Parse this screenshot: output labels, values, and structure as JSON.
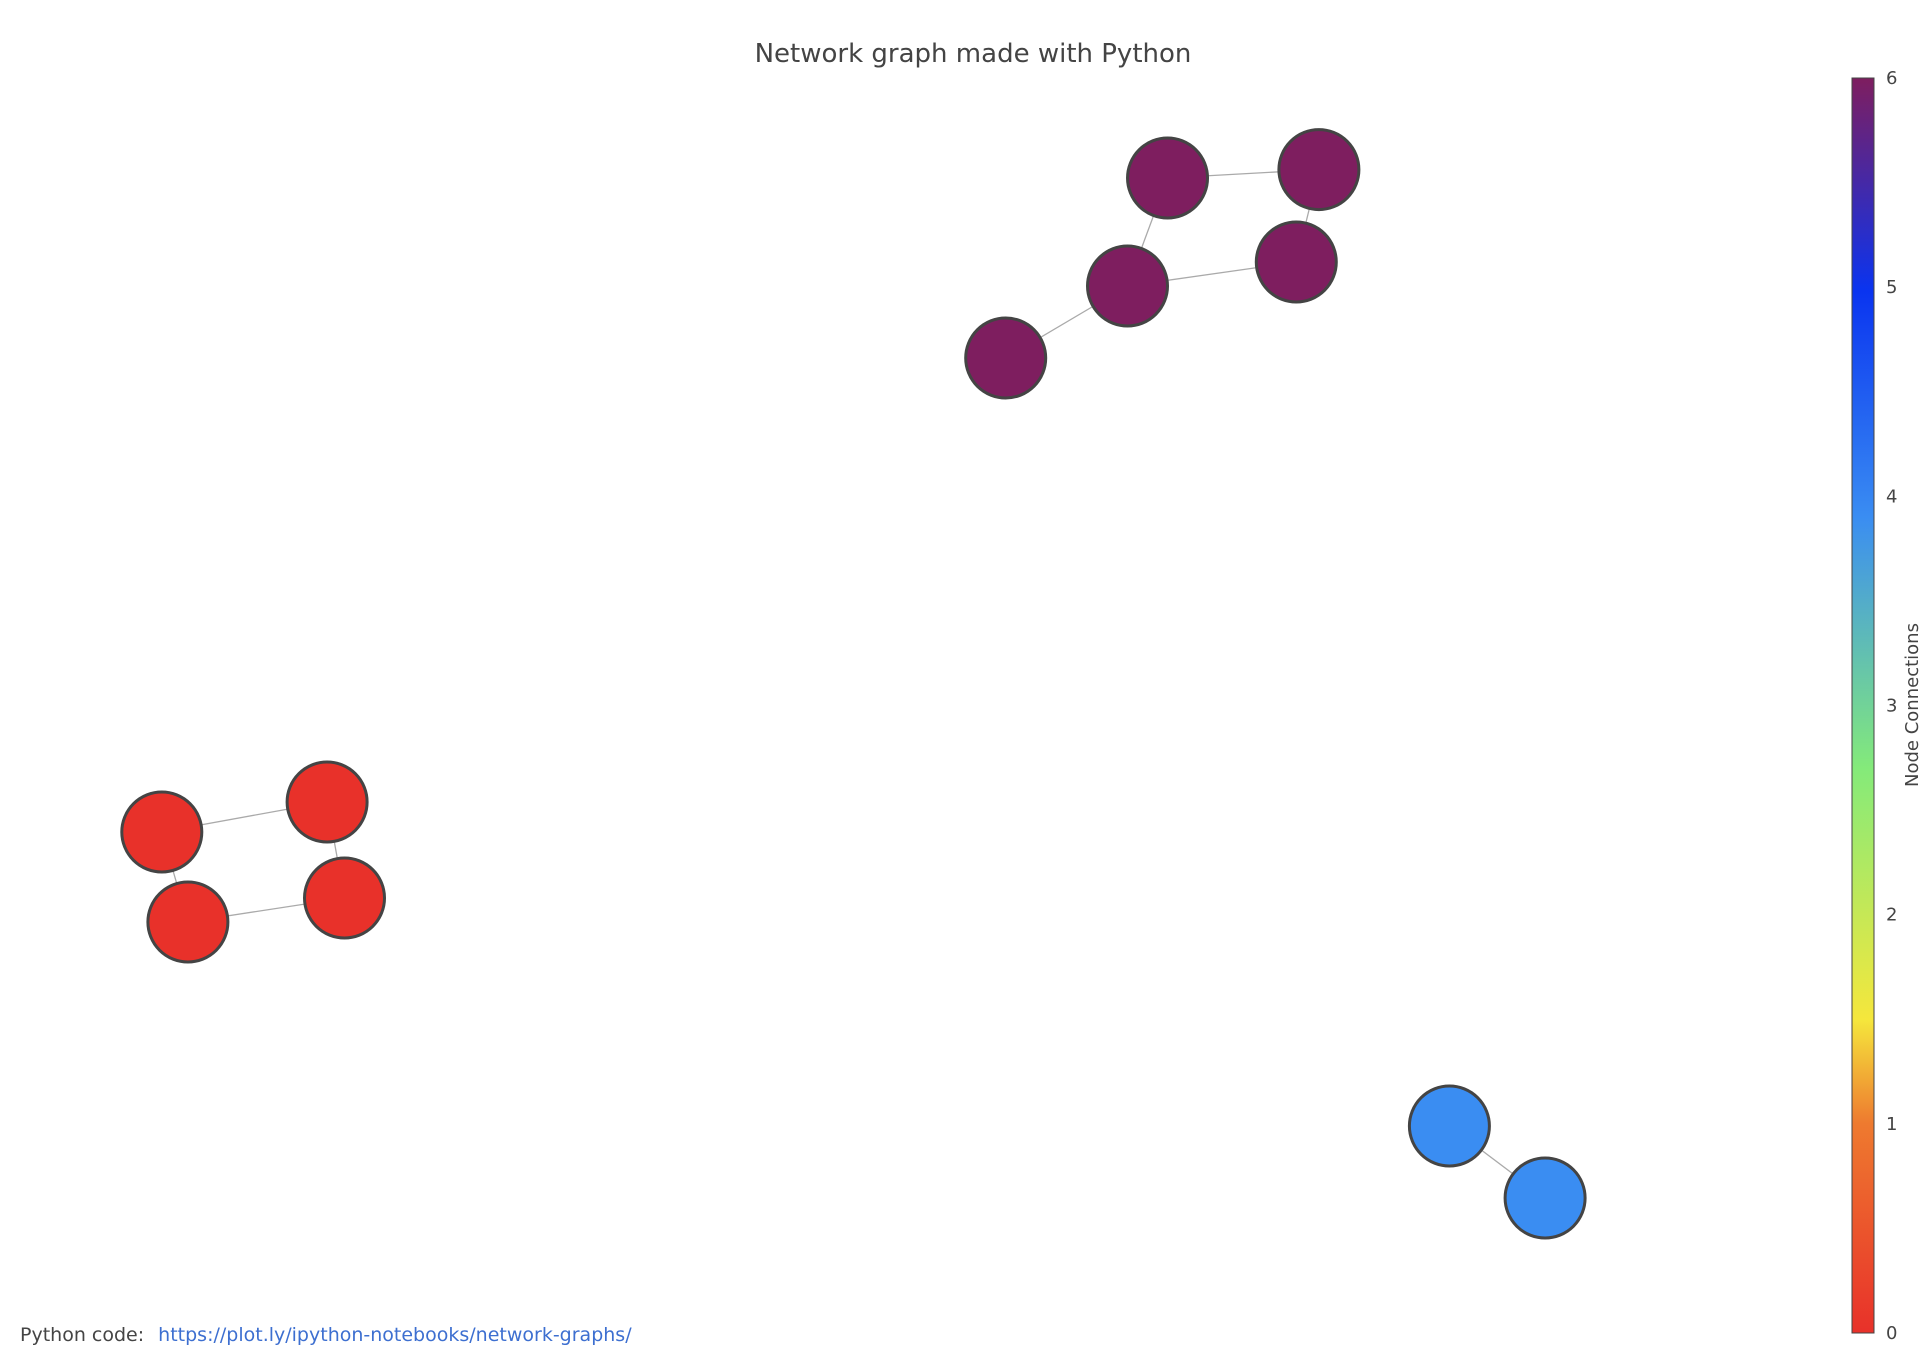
{
  "chart_data": {
    "type": "scatter",
    "title": "Network graph made with Python",
    "colorbar": {
      "title": "Node Connections",
      "tick_labels": [
        "0",
        "1",
        "2",
        "3",
        "4",
        "5",
        "6"
      ],
      "range": [
        0,
        6
      ],
      "colorscale": [
        "#e8312a",
        "#ee7a2f",
        "#f5e73c",
        "#84ea7a",
        "#3a8df2",
        "#0a34f0",
        "#7e1e5f"
      ]
    },
    "grid": false,
    "legend": "none",
    "nodes": [
      {
        "id": "a1",
        "x": 0.07,
        "y": 0.39,
        "connections": 0
      },
      {
        "id": "a2",
        "x": 0.165,
        "y": 0.415,
        "connections": 0
      },
      {
        "id": "a3",
        "x": 0.085,
        "y": 0.315,
        "connections": 0
      },
      {
        "id": "a4",
        "x": 0.175,
        "y": 0.335,
        "connections": 0
      },
      {
        "id": "b1",
        "x": 0.555,
        "y": 0.785,
        "connections": 6
      },
      {
        "id": "b2",
        "x": 0.625,
        "y": 0.845,
        "connections": 6
      },
      {
        "id": "b3",
        "x": 0.648,
        "y": 0.935,
        "connections": 6
      },
      {
        "id": "b4",
        "x": 0.735,
        "y": 0.942,
        "connections": 6
      },
      {
        "id": "b5",
        "x": 0.722,
        "y": 0.865,
        "connections": 6
      },
      {
        "id": "c1",
        "x": 0.81,
        "y": 0.145,
        "connections": 4
      },
      {
        "id": "c2",
        "x": 0.865,
        "y": 0.085,
        "connections": 4
      }
    ],
    "edges": [
      [
        "a1",
        "a2"
      ],
      [
        "a1",
        "a3"
      ],
      [
        "a2",
        "a4"
      ],
      [
        "a3",
        "a4"
      ],
      [
        "b1",
        "b2"
      ],
      [
        "b2",
        "b3"
      ],
      [
        "b3",
        "b4"
      ],
      [
        "b4",
        "b5"
      ],
      [
        "b5",
        "b2"
      ],
      [
        "c1",
        "c2"
      ]
    ],
    "xlim": [
      0,
      1
    ],
    "ylim": [
      0,
      1
    ]
  },
  "footer": {
    "label": "Python code:",
    "link_text": "https://plot.ly/ipython-notebooks/network-graphs/"
  }
}
